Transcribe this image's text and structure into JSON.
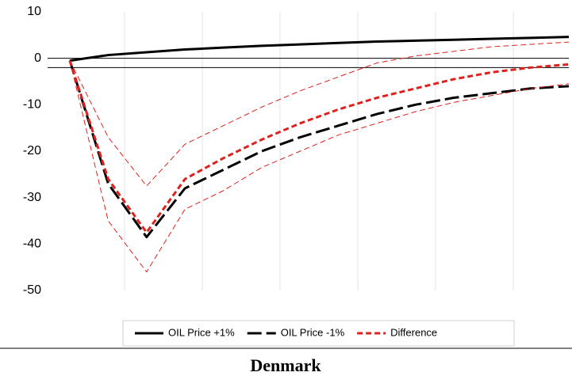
{
  "chart_data": {
    "type": "line",
    "caption": "Denmark",
    "categories": [
      null,
      null,
      null,
      null,
      null,
      null,
      null,
      null,
      null,
      null,
      null,
      null,
      null,
      null
    ],
    "series": [
      {
        "name": "OIL Price +1%",
        "color": "#000000",
        "dash": "solid",
        "width": 3,
        "values": [
          -0.5,
          0.7,
          1.3,
          1.9,
          2.3,
          2.7,
          3.0,
          3.3,
          3.6,
          3.8,
          4.0,
          4.2,
          4.4,
          4.6
        ]
      },
      {
        "name": "OIL Price -1%",
        "color": "#000000",
        "dash": "long-dash",
        "width": 3,
        "values": [
          -0.5,
          -27,
          -38.5,
          -28,
          -24,
          -20,
          -17,
          -14.5,
          -12,
          -10,
          -8.5,
          -7.5,
          -6.5,
          -6
        ]
      },
      {
        "name": "Difference",
        "color": "#e0201c",
        "dash": "dash",
        "width": 3,
        "values": [
          -0.5,
          -26,
          -37.5,
          -26,
          -21.5,
          -17.5,
          -14,
          -11,
          -8.5,
          -6.5,
          -4.5,
          -3,
          -2,
          -1.3
        ]
      },
      {
        "name": null,
        "color": "#e0201c",
        "dash": "dash",
        "width": 1,
        "values": [
          -0.5,
          -17,
          -27.5,
          -18.5,
          -14.5,
          -10.5,
          -7,
          -4,
          -1,
          0.5,
          1.5,
          2.5,
          3,
          3.5
        ]
      },
      {
        "name": null,
        "color": "#e0201c",
        "dash": "dash",
        "width": 1,
        "values": [
          -0.5,
          -35,
          -46,
          -32.5,
          -28.5,
          -23.5,
          -20,
          -16.5,
          -14,
          -11.5,
          -9.5,
          -8,
          -6.5,
          -5.5
        ]
      }
    ],
    "reference_lines": [
      0,
      -2
    ],
    "ylim": [
      -50,
      10
    ],
    "yticks": [
      10,
      0,
      -10,
      -20,
      -30,
      -40,
      -50
    ]
  }
}
